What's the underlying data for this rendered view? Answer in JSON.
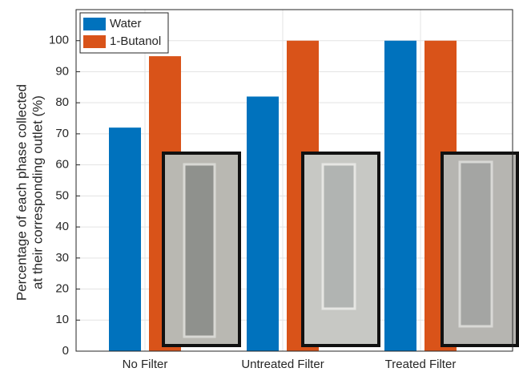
{
  "chart_data": {
    "type": "bar",
    "y_label": [
      "Percentage of each phase collected",
      "at their corresponding outlet (%)"
    ],
    "categories": [
      "No Filter",
      "Untreated Filter",
      "Treated Filter"
    ],
    "series": [
      {
        "name": "Water",
        "color": "#0072bd",
        "values": [
          72,
          82,
          100
        ]
      },
      {
        "name": "1-Butanol",
        "color": "#d95319",
        "values": [
          95,
          100,
          100
        ]
      }
    ],
    "ylim": [
      0,
      110
    ],
    "yticks": [
      0,
      10,
      20,
      30,
      40,
      50,
      60,
      70,
      80,
      90,
      100
    ],
    "grid": true,
    "legend": "top-left"
  }
}
